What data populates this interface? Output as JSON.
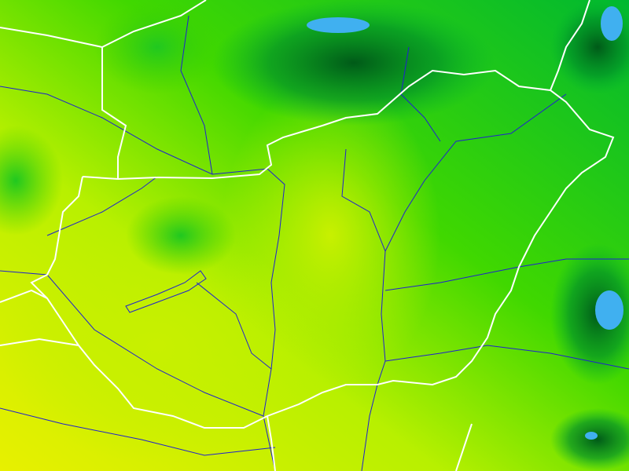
{
  "map": {
    "colors": {
      "low": "#e0f000",
      "mid_low": "#b8f000",
      "mid": "#60e000",
      "high": "#10c830",
      "very_high": "#006a20",
      "peak": "#40b0f0",
      "border": "#ffffff",
      "river": "#2020d0"
    }
  }
}
